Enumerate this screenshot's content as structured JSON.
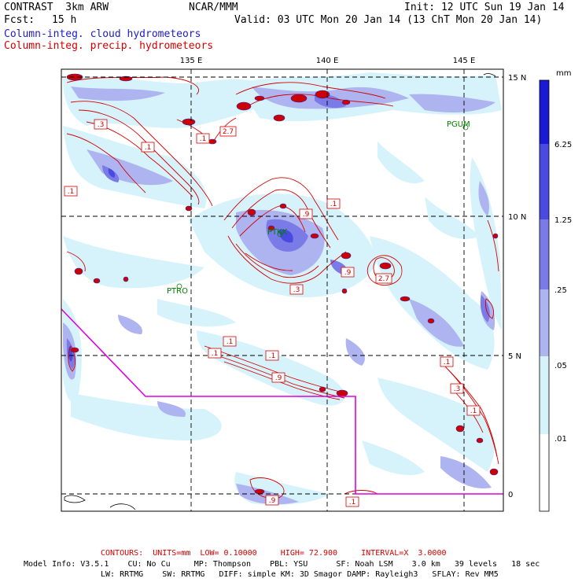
{
  "header": {
    "model_title": "CONTRAST  3km ARW",
    "forecast_label": "Fcst:",
    "forecast_value": "15 h",
    "center": "NCAR/MMM",
    "init": "Init: 12 UTC Sun 19 Jan 14",
    "valid": "Valid: 03 UTC Mon 20 Jan 14 (13 ChT Mon 20 Jan 14)",
    "field1": "Column-integ. cloud hydrometeors",
    "field2": "Column-integ. precip. hydrometeors"
  },
  "map": {
    "lon_labels": [
      "135 E",
      "140 E",
      "145 E"
    ],
    "lat_labels": [
      "15 N",
      "10 N",
      "5 N",
      "0"
    ],
    "stations": [
      "PGUM",
      "PTKK",
      "PTRO"
    ],
    "contour_labels": [
      ".3",
      ".1",
      ".1",
      ".1",
      "2.7",
      ".1",
      ".9",
      ".3",
      ".9",
      "2.7",
      ".1",
      ".1",
      ".1",
      ".9",
      ".1",
      ".3",
      ".1",
      ".9",
      ".1"
    ]
  },
  "colorbar": {
    "unit": "mm",
    "levels": [
      "6.25",
      "1.25",
      ".25",
      ".05",
      ".01"
    ],
    "colors": [
      "#1a1ad6",
      "#4a4ae0",
      "#7b7be8",
      "#aeb4f0",
      "#d6f3fb",
      "#ffffff"
    ]
  },
  "footer": {
    "contours": "CONTOURS:  UNITS=mm  LOW= 0.10000     HIGH= 72.900     INTERVAL=X  3.0000",
    "info1": "Model Info: V3.5.1    CU: No Cu     MP: Thompson    PBL: YSU      SF: Noah LSM    3.0 km   39 levels   18 sec",
    "info2": "LW: RRTMG    SW: RRTMG   DIFF: simple KM: 3D Smagor DAMP: Rayleigh3   SFLAY: Rev MM5"
  }
}
